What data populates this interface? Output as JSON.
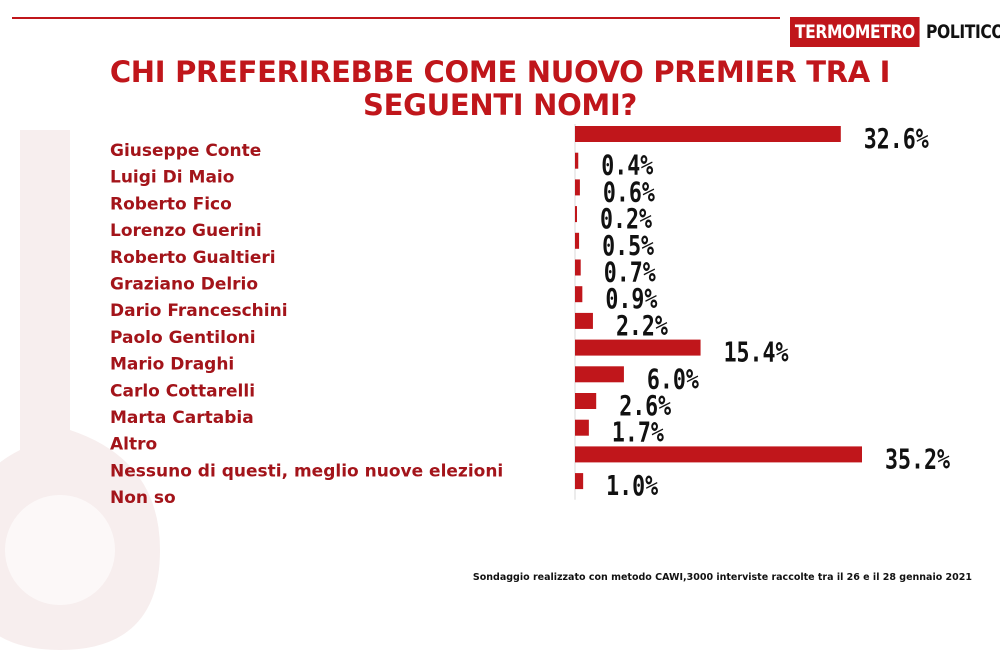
{
  "logo": {
    "left": "TERMOMETRO",
    "right": "POLITICO"
  },
  "title": "CHI PREFERIREBBE COME NUOVO PREMIER TRA I SEGUENTI NOMI?",
  "footnote": "Sondaggio realizzato con metodo CAWI,3000 interviste raccolte tra il 26  e il 28 gennaio  2021",
  "colors": {
    "accent": "#c0161b",
    "label": "#a3141a",
    "value": "#111111"
  },
  "chart_data": {
    "type": "bar",
    "orientation": "horizontal",
    "title": "CHI PREFERIREBBE COME NUOVO PREMIER TRA I SEGUENTI NOMI?",
    "categories": [
      "Giuseppe Conte",
      "Luigi Di Maio",
      "Roberto Fico",
      "Lorenzo Guerini",
      "Roberto Gualtieri",
      "Graziano Delrio",
      "Dario Franceschini",
      "Paolo Gentiloni",
      "Mario Draghi",
      "Carlo Cottarelli",
      "Marta Cartabia",
      "Altro",
      "Nessuno di questi, meglio nuove elezioni",
      "Non so"
    ],
    "values": [
      32.6,
      0.4,
      0.6,
      0.2,
      0.5,
      0.7,
      0.9,
      2.2,
      15.4,
      6.0,
      2.6,
      1.7,
      35.2,
      1.0
    ],
    "value_labels": [
      "32.6%",
      "0.4%",
      "0.6%",
      "0.2%",
      "0.5%",
      "0.7%",
      "0.9%",
      "2.2%",
      "15.4%",
      "6.0%",
      "2.6%",
      "1.7%",
      "35.2%",
      "1.0%"
    ],
    "unit": "%",
    "grid": false,
    "legend": "none",
    "bar_color": "#c0161b"
  }
}
